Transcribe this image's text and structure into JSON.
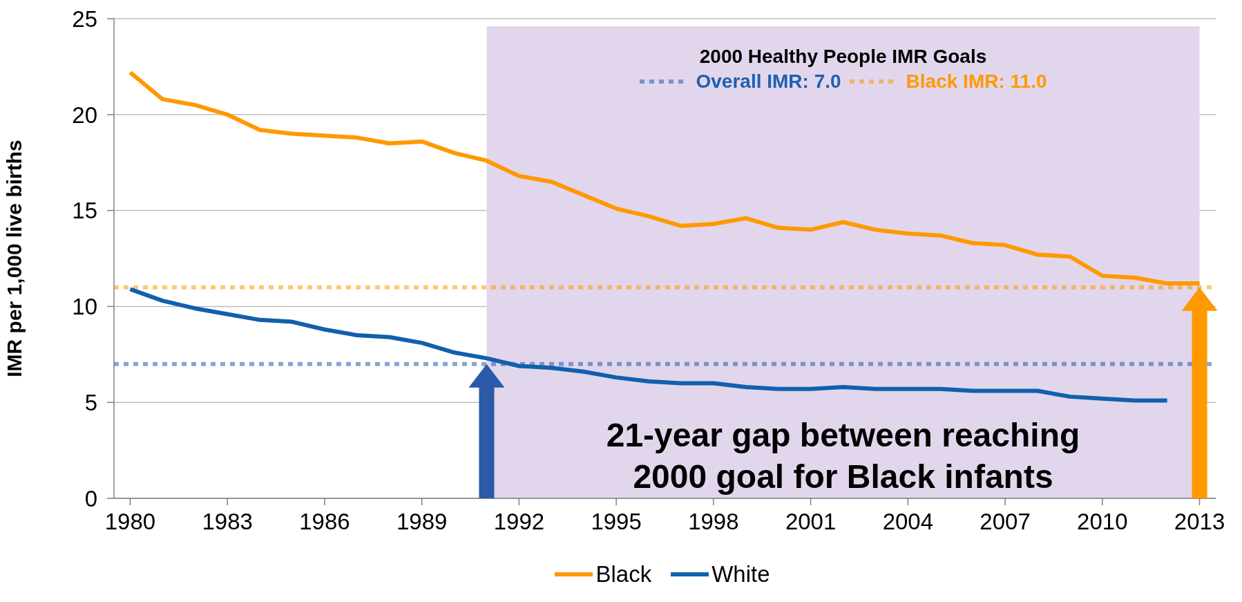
{
  "chart_data": {
    "type": "line",
    "ylabel": "IMR per 1,000 live births",
    "x": [
      1980,
      1981,
      1982,
      1983,
      1984,
      1985,
      1986,
      1987,
      1988,
      1989,
      1990,
      1991,
      1992,
      1993,
      1994,
      1995,
      1996,
      1997,
      1998,
      1999,
      2000,
      2001,
      2002,
      2003,
      2004,
      2005,
      2006,
      2007,
      2008,
      2009,
      2010,
      2011,
      2012,
      2013
    ],
    "series": [
      {
        "name": "Black",
        "color": "#ff9900",
        "values": [
          22.2,
          20.8,
          20.5,
          20.0,
          19.2,
          19.0,
          18.9,
          18.8,
          18.5,
          18.6,
          18.0,
          17.6,
          16.8,
          16.5,
          15.8,
          15.1,
          14.7,
          14.2,
          14.3,
          14.6,
          14.1,
          14.0,
          14.4,
          14.0,
          13.8,
          13.7,
          13.3,
          13.2,
          12.7,
          12.6,
          11.6,
          11.5,
          11.2,
          11.2
        ]
      },
      {
        "name": "White",
        "color": "#1060ad",
        "values": [
          10.9,
          10.3,
          9.9,
          9.6,
          9.3,
          9.2,
          8.8,
          8.5,
          8.4,
          8.1,
          7.6,
          7.3,
          6.9,
          6.8,
          6.6,
          6.3,
          6.1,
          6.0,
          6.0,
          5.8,
          5.7,
          5.7,
          5.8,
          5.7,
          5.7,
          5.7,
          5.6,
          5.6,
          5.6,
          5.3,
          5.2,
          5.1,
          5.1,
          null
        ]
      }
    ],
    "xlim": [
      1979.5,
      2013.5
    ],
    "xticks": [
      1980,
      1983,
      1986,
      1989,
      1992,
      1995,
      1998,
      2001,
      2004,
      2007,
      2010,
      2013
    ],
    "ylim": [
      0,
      25
    ],
    "yticks": [
      0,
      5,
      10,
      15,
      20,
      25
    ],
    "ref_lines": [
      {
        "axis": "y",
        "value": 7,
        "label": "Overall IMR: 7.0",
        "color": "#1f5fb0",
        "line_style": "dotted"
      },
      {
        "axis": "y",
        "value": 11,
        "label": "Black IMR: 11.0",
        "color": "#ff9900",
        "line_style": "dotted"
      }
    ],
    "bands": [
      {
        "axis": "x",
        "from": 1991,
        "to": 2013,
        "color": "#e2d6ec"
      }
    ],
    "annotations": [
      "2000 Healthy People IMR Goals",
      "21-year gap between reaching 2000 goal for Black infants"
    ],
    "grid": "y",
    "legend": "bottom",
    "marker": "none",
    "line_style": "solid"
  }
}
